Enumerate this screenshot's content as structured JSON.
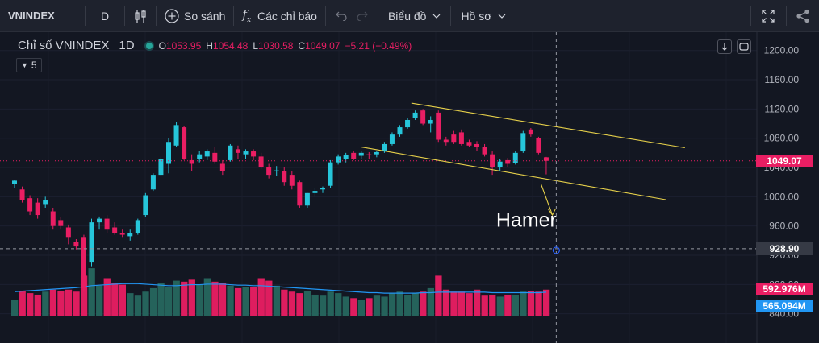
{
  "toolbar": {
    "symbol": "VNINDEX",
    "interval": "D",
    "compare_label": "So sánh",
    "indicators_label": "Các chỉ báo",
    "chart_menu_label": "Biểu đồ",
    "profile_menu_label": "Hồ sơ",
    "icons": [
      "candles-icon",
      "plus-circle-icon",
      "fx-icon",
      "undo-icon",
      "redo-icon",
      "fullscreen-icon",
      "share-icon"
    ]
  },
  "legend": {
    "title": "Chỉ số VNINDEX",
    "timeframe": "1D",
    "open_key": "O",
    "open": "1053.95",
    "high_key": "H",
    "high": "1054.48",
    "low_key": "L",
    "low": "1030.58",
    "close_key": "C",
    "close": "1049.07",
    "change": "−5.21 (−0.49%)",
    "indicator_count": "5"
  },
  "colors": {
    "background": "#131722",
    "up": "#26c6da",
    "down": "#e91e63",
    "vol_up": "#26675f",
    "vol_down": "#e91e63",
    "ma": "#2196f3",
    "trend": "#e6d04a",
    "price_tag": "#e91e63",
    "volume_tag": "#e91e63",
    "ma_tag": "#2196f3",
    "crosshair_tag": "#363a45"
  },
  "chart_data": {
    "type": "candlestick",
    "y_ticks": [
      "1200.00",
      "1160.00",
      "1120.00",
      "1080.00",
      "1040.00",
      "1000.00",
      "960.00",
      "920.00",
      "880.00",
      "840.00"
    ],
    "ylim": [
      800,
      1225
    ],
    "last_price_label": "1049.07",
    "crosshair_price_label": "928.90",
    "volume_label": "592.976M",
    "volume_ma_label": "565.094M",
    "annotation": "Hamer",
    "candles": [
      {
        "o": 1017,
        "h": 1023,
        "l": 1012,
        "c": 1022
      },
      {
        "o": 1010,
        "h": 1014,
        "l": 992,
        "c": 995
      },
      {
        "o": 998,
        "h": 1002,
        "l": 975,
        "c": 980
      },
      {
        "o": 992,
        "h": 998,
        "l": 970,
        "c": 975
      },
      {
        "o": 990,
        "h": 1000,
        "l": 985,
        "c": 995
      },
      {
        "o": 980,
        "h": 985,
        "l": 955,
        "c": 960
      },
      {
        "o": 968,
        "h": 972,
        "l": 955,
        "c": 960
      },
      {
        "o": 958,
        "h": 962,
        "l": 935,
        "c": 945
      },
      {
        "o": 938,
        "h": 942,
        "l": 928,
        "c": 932
      },
      {
        "o": 945,
        "h": 948,
        "l": 870,
        "c": 875
      },
      {
        "o": 910,
        "h": 970,
        "l": 905,
        "c": 965
      },
      {
        "o": 965,
        "h": 973,
        "l": 955,
        "c": 970
      },
      {
        "o": 970,
        "h": 975,
        "l": 950,
        "c": 955
      },
      {
        "o": 958,
        "h": 965,
        "l": 948,
        "c": 950
      },
      {
        "o": 950,
        "h": 955,
        "l": 945,
        "c": 948
      },
      {
        "o": 946,
        "h": 955,
        "l": 940,
        "c": 950
      },
      {
        "o": 950,
        "h": 970,
        "l": 948,
        "c": 968
      },
      {
        "o": 975,
        "h": 1005,
        "l": 972,
        "c": 1002
      },
      {
        "o": 1010,
        "h": 1032,
        "l": 1008,
        "c": 1030
      },
      {
        "o": 1030,
        "h": 1055,
        "l": 1028,
        "c": 1052
      },
      {
        "o": 1045,
        "h": 1080,
        "l": 1032,
        "c": 1075
      },
      {
        "o": 1070,
        "h": 1102,
        "l": 1068,
        "c": 1098
      },
      {
        "o": 1095,
        "h": 1097,
        "l": 1050,
        "c": 1052
      },
      {
        "o": 1050,
        "h": 1058,
        "l": 1035,
        "c": 1045
      },
      {
        "o": 1052,
        "h": 1063,
        "l": 1047,
        "c": 1058
      },
      {
        "o": 1055,
        "h": 1065,
        "l": 1050,
        "c": 1062
      },
      {
        "o": 1060,
        "h": 1068,
        "l": 1045,
        "c": 1048
      },
      {
        "o": 1045,
        "h": 1050,
        "l": 1030,
        "c": 1035
      },
      {
        "o": 1050,
        "h": 1072,
        "l": 1048,
        "c": 1070
      },
      {
        "o": 1065,
        "h": 1070,
        "l": 1052,
        "c": 1060
      },
      {
        "o": 1058,
        "h": 1065,
        "l": 1052,
        "c": 1062
      },
      {
        "o": 1062,
        "h": 1065,
        "l": 1050,
        "c": 1055
      },
      {
        "o": 1055,
        "h": 1060,
        "l": 1038,
        "c": 1040
      },
      {
        "o": 1040,
        "h": 1045,
        "l": 1025,
        "c": 1030
      },
      {
        "o": 1035,
        "h": 1042,
        "l": 1028,
        "c": 1036
      },
      {
        "o": 1035,
        "h": 1040,
        "l": 1015,
        "c": 1020
      },
      {
        "o": 1030,
        "h": 1035,
        "l": 1010,
        "c": 1015
      },
      {
        "o": 1020,
        "h": 1022,
        "l": 985,
        "c": 988
      },
      {
        "o": 988,
        "h": 1005,
        "l": 985,
        "c": 1005
      },
      {
        "o": 1005,
        "h": 1012,
        "l": 1000,
        "c": 1008
      },
      {
        "o": 1010,
        "h": 1014,
        "l": 1005,
        "c": 1012
      },
      {
        "o": 1015,
        "h": 1050,
        "l": 1012,
        "c": 1047
      },
      {
        "o": 1047,
        "h": 1058,
        "l": 1044,
        "c": 1055
      },
      {
        "o": 1052,
        "h": 1060,
        "l": 1047,
        "c": 1057
      },
      {
        "o": 1060,
        "h": 1063,
        "l": 1050,
        "c": 1052
      },
      {
        "o": 1056,
        "h": 1062,
        "l": 1052,
        "c": 1060
      },
      {
        "o": 1058,
        "h": 1061,
        "l": 1051,
        "c": 1057
      },
      {
        "o": 1058,
        "h": 1063,
        "l": 1054,
        "c": 1061
      },
      {
        "o": 1062,
        "h": 1075,
        "l": 1060,
        "c": 1072
      },
      {
        "o": 1072,
        "h": 1088,
        "l": 1070,
        "c": 1085
      },
      {
        "o": 1085,
        "h": 1098,
        "l": 1082,
        "c": 1095
      },
      {
        "o": 1095,
        "h": 1108,
        "l": 1093,
        "c": 1105
      },
      {
        "o": 1108,
        "h": 1118,
        "l": 1105,
        "c": 1115
      },
      {
        "o": 1118,
        "h": 1120,
        "l": 1098,
        "c": 1100
      },
      {
        "o": 1100,
        "h": 1110,
        "l": 1088,
        "c": 1105
      },
      {
        "o": 1115,
        "h": 1118,
        "l": 1075,
        "c": 1078
      },
      {
        "o": 1078,
        "h": 1082,
        "l": 1070,
        "c": 1075
      },
      {
        "o": 1085,
        "h": 1090,
        "l": 1072,
        "c": 1075
      },
      {
        "o": 1088,
        "h": 1092,
        "l": 1070,
        "c": 1072
      },
      {
        "o": 1075,
        "h": 1078,
        "l": 1068,
        "c": 1070
      },
      {
        "o": 1072,
        "h": 1076,
        "l": 1062,
        "c": 1068
      },
      {
        "o": 1068,
        "h": 1072,
        "l": 1055,
        "c": 1058
      },
      {
        "o": 1058,
        "h": 1062,
        "l": 1030,
        "c": 1040
      },
      {
        "o": 1040,
        "h": 1052,
        "l": 1035,
        "c": 1048
      },
      {
        "o": 1050,
        "h": 1053,
        "l": 1040,
        "c": 1045
      },
      {
        "o": 1046,
        "h": 1062,
        "l": 1044,
        "c": 1060
      },
      {
        "o": 1062,
        "h": 1090,
        "l": 1060,
        "c": 1087
      },
      {
        "o": 1092,
        "h": 1094,
        "l": 1082,
        "c": 1085
      },
      {
        "o": 1080,
        "h": 1082,
        "l": 1058,
        "c": 1060
      },
      {
        "o": 1053.95,
        "h": 1054.48,
        "l": 1030.58,
        "c": 1049.07
      }
    ],
    "volume": [
      0.32,
      0.5,
      0.45,
      0.42,
      0.48,
      0.52,
      0.5,
      0.52,
      0.48,
      0.8,
      0.95,
      0.6,
      0.75,
      0.65,
      0.62,
      0.45,
      0.4,
      0.48,
      0.55,
      0.65,
      0.58,
      0.7,
      0.68,
      0.72,
      0.62,
      0.75,
      0.68,
      0.65,
      0.6,
      0.55,
      0.58,
      0.58,
      0.75,
      0.7,
      0.6,
      0.52,
      0.48,
      0.45,
      0.5,
      0.42,
      0.4,
      0.48,
      0.45,
      0.38,
      0.35,
      0.32,
      0.35,
      0.4,
      0.38,
      0.45,
      0.48,
      0.42,
      0.45,
      0.48,
      0.55,
      0.8,
      0.52,
      0.48,
      0.48,
      0.45,
      0.52,
      0.4,
      0.42,
      0.38,
      0.42,
      0.42,
      0.48,
      0.5,
      0.48,
      0.52
    ],
    "volume_ma": [
      0.48,
      0.49,
      0.5,
      0.51,
      0.52,
      0.53,
      0.54,
      0.55,
      0.56,
      0.58,
      0.6,
      0.61,
      0.62,
      0.63,
      0.64,
      0.64,
      0.64,
      0.63,
      0.62,
      0.61,
      0.6,
      0.6,
      0.61,
      0.62,
      0.62,
      0.63,
      0.63,
      0.63,
      0.62,
      0.61,
      0.61,
      0.6,
      0.6,
      0.59,
      0.58,
      0.57,
      0.56,
      0.55,
      0.54,
      0.53,
      0.52,
      0.51,
      0.5,
      0.49,
      0.48,
      0.47,
      0.46,
      0.46,
      0.45,
      0.45,
      0.45,
      0.45,
      0.45,
      0.46,
      0.46,
      0.47,
      0.47,
      0.47,
      0.47,
      0.47,
      0.47,
      0.47,
      0.46,
      0.46,
      0.46,
      0.46,
      0.46,
      0.46,
      0.46,
      0.47
    ],
    "trend_upper": [
      {
        "i": 51.5,
        "p": 1128
      },
      {
        "i": 87,
        "p": 1067
      }
    ],
    "trend_lower": [
      {
        "i": 45,
        "p": 1068
      },
      {
        "i": 84.5,
        "p": 996
      }
    ],
    "arrow_from": {
      "i": 68.3,
      "p": 1018
    },
    "arrow_to": {
      "i": 69.8,
      "p": 975
    },
    "crosshair_value": 928.9,
    "crosshair_index": 70.3
  }
}
